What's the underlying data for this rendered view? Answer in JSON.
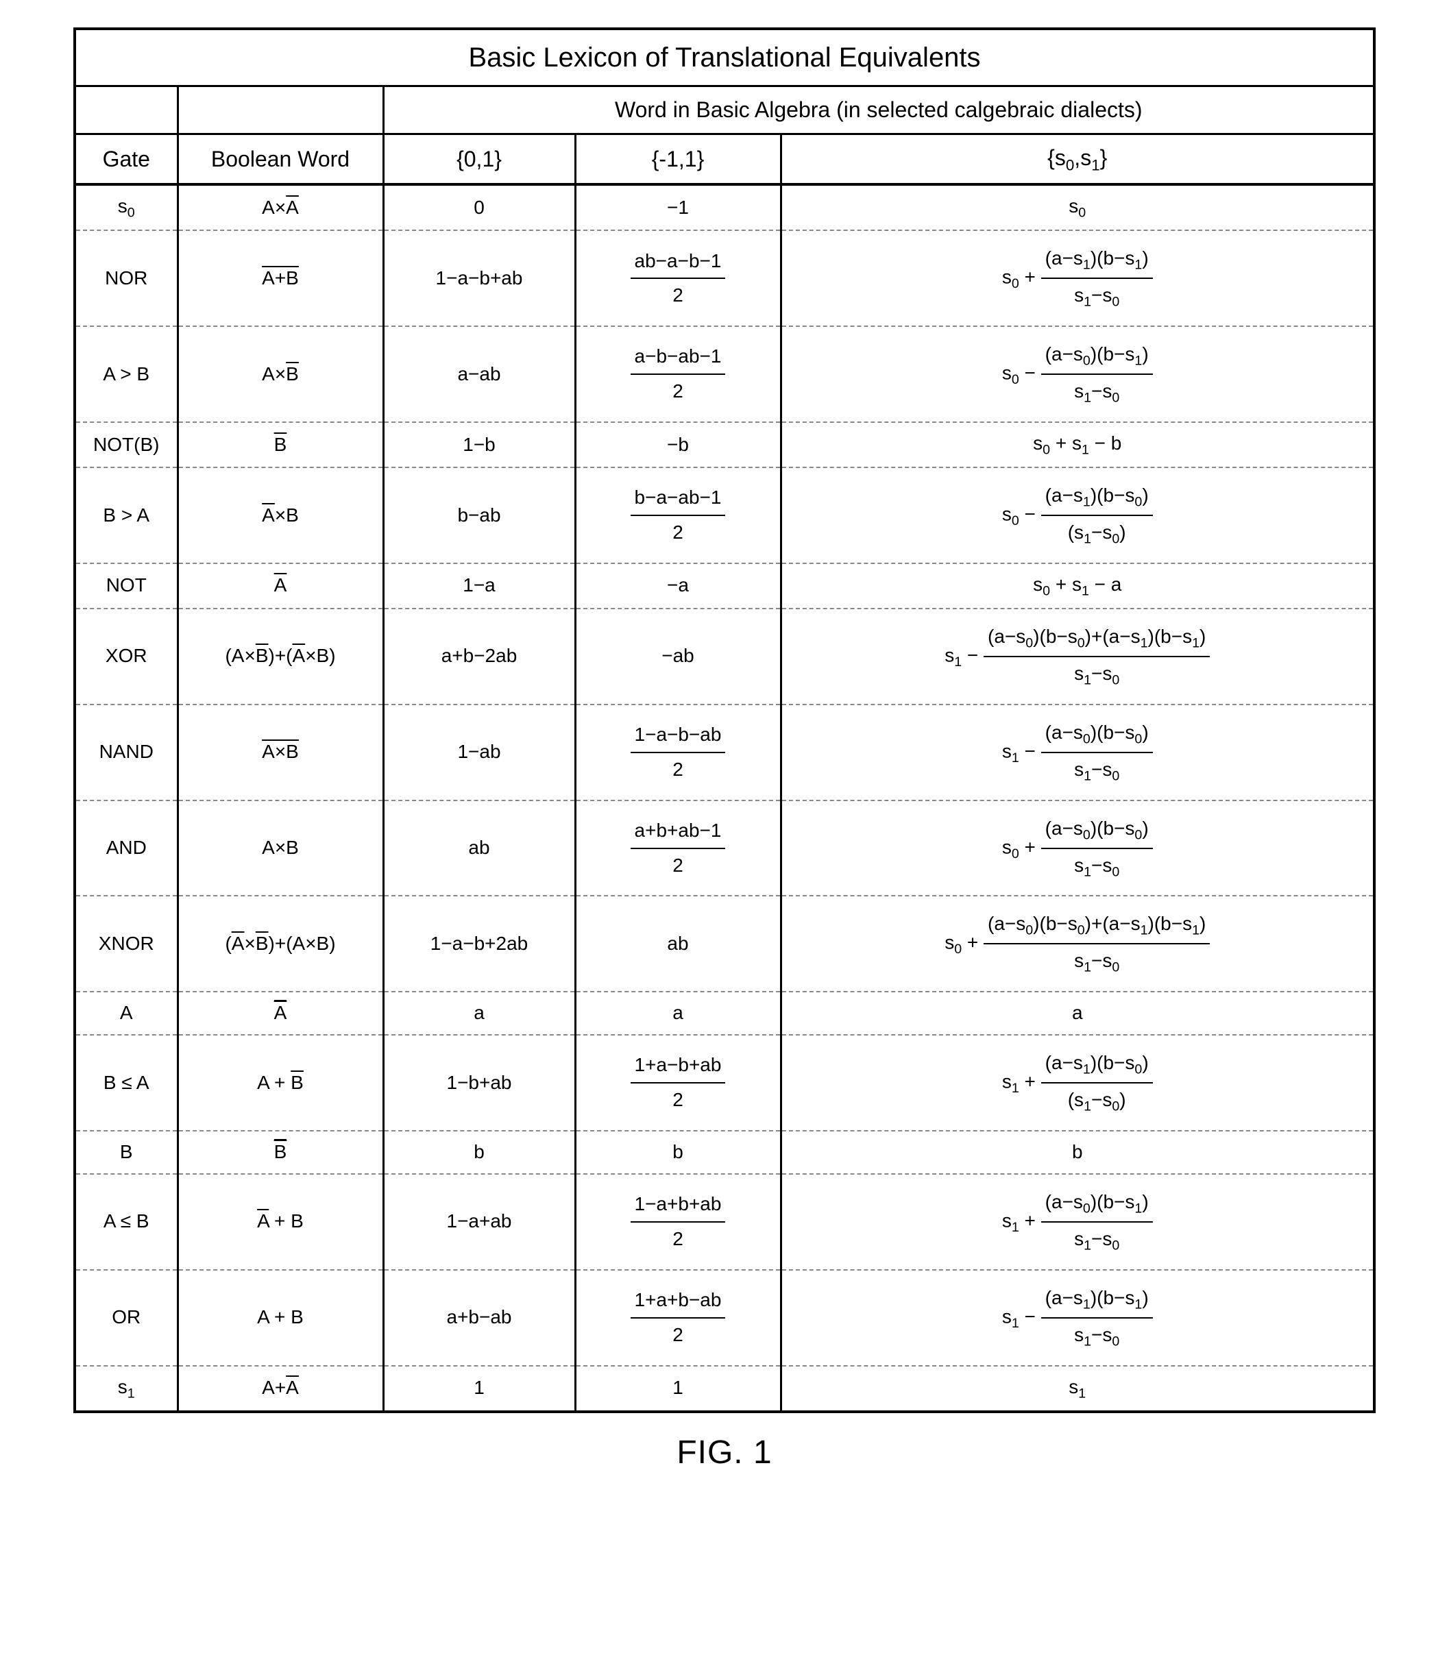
{
  "figure_caption": "FIG. 1",
  "table": {
    "title": "Basic Lexicon of Translational Equivalents",
    "spanning_header": "Word in Basic Algebra (in selected calgebraic dialects)",
    "columns": {
      "gate": "Gate",
      "boolean": "Boolean Word",
      "h01": "{0,1}",
      "hm11": "{-1,1}",
      "hs": "{s<sub>0</sub>,s<sub>1</sub>}"
    },
    "rows": [
      {
        "gate": "s<sub>0</sub>",
        "boolean": "A×<span class='ov'>A</span>",
        "h01": "0",
        "hm11": "−1",
        "hs": "s<sub>0</sub>"
      },
      {
        "gate": "NOR",
        "boolean": "<span class='ov'>A+B</span>",
        "h01": "1−a−b+ab",
        "hm11": "<span class='frac'><span class='num'>ab−a−b−1</span><span class='den'>2</span></span>",
        "hs": "s<sub>0</sub> + <span class='frac'><span class='num'>(a−s<sub>1</sub>)(b−s<sub>1</sub>)</span><span class='den'>s<sub>1</sub>−s<sub>0</sub></span></span>"
      },
      {
        "gate": "A &gt; B",
        "boolean": "A×<span class='ov'>B</span>",
        "h01": "a−ab",
        "hm11": "<span class='frac'><span class='num'>a−b−ab−1</span><span class='den'>2</span></span>",
        "hs": "s<sub>0</sub> − <span class='frac'><span class='num'>(a−s<sub>0</sub>)(b−s<sub>1</sub>)</span><span class='den'>s<sub>1</sub>−s<sub>0</sub></span></span>"
      },
      {
        "gate": "NOT(B)",
        "boolean": "<span class='ov'>B</span>",
        "h01": "1−b",
        "hm11": "−b",
        "hs": "s<sub>0</sub> + s<sub>1</sub> − b"
      },
      {
        "gate": "B &gt; A",
        "boolean": "<span class='ov'>A</span>×B",
        "h01": "b−ab",
        "hm11": "<span class='frac'><span class='num'>b−a−ab−1</span><span class='den'>2</span></span>",
        "hs": "s<sub>0</sub> − <span class='frac'><span class='num'>(a−s<sub>1</sub>)(b−s<sub>0</sub>)</span><span class='den'>(s<sub>1</sub>−s<sub>0</sub>)</span></span>"
      },
      {
        "gate": "NOT",
        "boolean": "<span class='ov'>A</span>",
        "h01": "1−a",
        "hm11": "−a",
        "hs": "s<sub>0</sub> + s<sub>1</sub> − a"
      },
      {
        "gate": "XOR",
        "boolean": "(A×<span class='ov'>B</span>)+(<span class='ov'>A</span>×B)",
        "h01": "a+b−2ab",
        "hm11": "−ab",
        "hs": "s<sub>1</sub> − <span class='frac'><span class='num'>(a−s<sub>0</sub>)(b−s<sub>0</sub>)+(a−s<sub>1</sub>)(b−s<sub>1</sub>)</span><span class='den'>s<sub>1</sub>−s<sub>0</sub></span></span>"
      },
      {
        "gate": "NAND",
        "boolean": "<span class='ov'>A×B</span>",
        "h01": "1−ab",
        "hm11": "<span class='frac'><span class='num'>1−a−b−ab</span><span class='den'>2</span></span>",
        "hs": "s<sub>1</sub> − <span class='frac'><span class='num'>(a−s<sub>0</sub>)(b−s<sub>0</sub>)</span><span class='den'>s<sub>1</sub>−s<sub>0</sub></span></span>"
      },
      {
        "gate": "AND",
        "boolean": "A×B",
        "h01": "ab",
        "hm11": "<span class='frac'><span class='num'>a+b+ab−1</span><span class='den'>2</span></span>",
        "hs": "s<sub>0</sub> + <span class='frac'><span class='num'>(a−s<sub>0</sub>)(b−s<sub>0</sub>)</span><span class='den'>s<sub>1</sub>−s<sub>0</sub></span></span>"
      },
      {
        "gate": "XNOR",
        "boolean": "(<span class='ov'>A</span>×<span class='ov'>B</span>)+(A×B)",
        "h01": "1−a−b+2ab",
        "hm11": "ab",
        "hs": "s<sub>0</sub> + <span class='frac'><span class='num'>(a−s<sub>0</sub>)(b−s<sub>0</sub>)+(a−s<sub>1</sub>)(b−s<sub>1</sub>)</span><span class='den'>s<sub>1</sub>−s<sub>0</sub></span></span>"
      },
      {
        "gate": "A",
        "boolean": "<span class='dov'><span class='ov'>A</span></span>",
        "h01": "a",
        "hm11": "a",
        "hs": "a"
      },
      {
        "gate": "B ≤ A",
        "boolean": "A + <span class='ov'>B</span>",
        "h01": "1−b+ab",
        "hm11": "<span class='frac'><span class='num'>1+a−b+ab</span><span class='den'>2</span></span>",
        "hs": "s<sub>1</sub> + <span class='frac'><span class='num'>(a−s<sub>1</sub>)(b−s<sub>0</sub>)</span><span class='den'>(s<sub>1</sub>−s<sub>0</sub>)</span></span>"
      },
      {
        "gate": "B",
        "boolean": "<span class='dov'><span class='ov'>B</span></span>",
        "h01": "b",
        "hm11": "b",
        "hs": "b"
      },
      {
        "gate": "A ≤ B",
        "boolean": "<span class='ov'>A</span> + B",
        "h01": "1−a+ab",
        "hm11": "<span class='frac'><span class='num'>1−a+b+ab</span><span class='den'>2</span></span>",
        "hs": "s<sub>1</sub> + <span class='frac'><span class='num'>(a−s<sub>0</sub>)(b−s<sub>1</sub>)</span><span class='den'>s<sub>1</sub>−s<sub>0</sub></span></span>"
      },
      {
        "gate": "OR",
        "boolean": "A + B",
        "h01": "a+b−ab",
        "hm11": "<span class='frac'><span class='num'>1+a+b−ab</span><span class='den'>2</span></span>",
        "hs": "s<sub>1</sub> − <span class='frac'><span class='num'>(a−s<sub>1</sub>)(b−s<sub>1</sub>)</span><span class='den'>s<sub>1</sub>−s<sub>0</sub></span></span>"
      },
      {
        "gate": "s<sub>1</sub>",
        "boolean": "A+<span class='ov'>A</span>",
        "h01": "1",
        "hm11": "1",
        "hs": "s<sub>1</sub>"
      }
    ],
    "column_widths": [
      "150px",
      "300px",
      "280px",
      "300px",
      "auto"
    ],
    "border_color": "#000000",
    "dash_color": "#888888",
    "background_color": "#ffffff",
    "title_fontsize": 40,
    "header_fontsize": 32,
    "cell_fontsize": 28
  }
}
